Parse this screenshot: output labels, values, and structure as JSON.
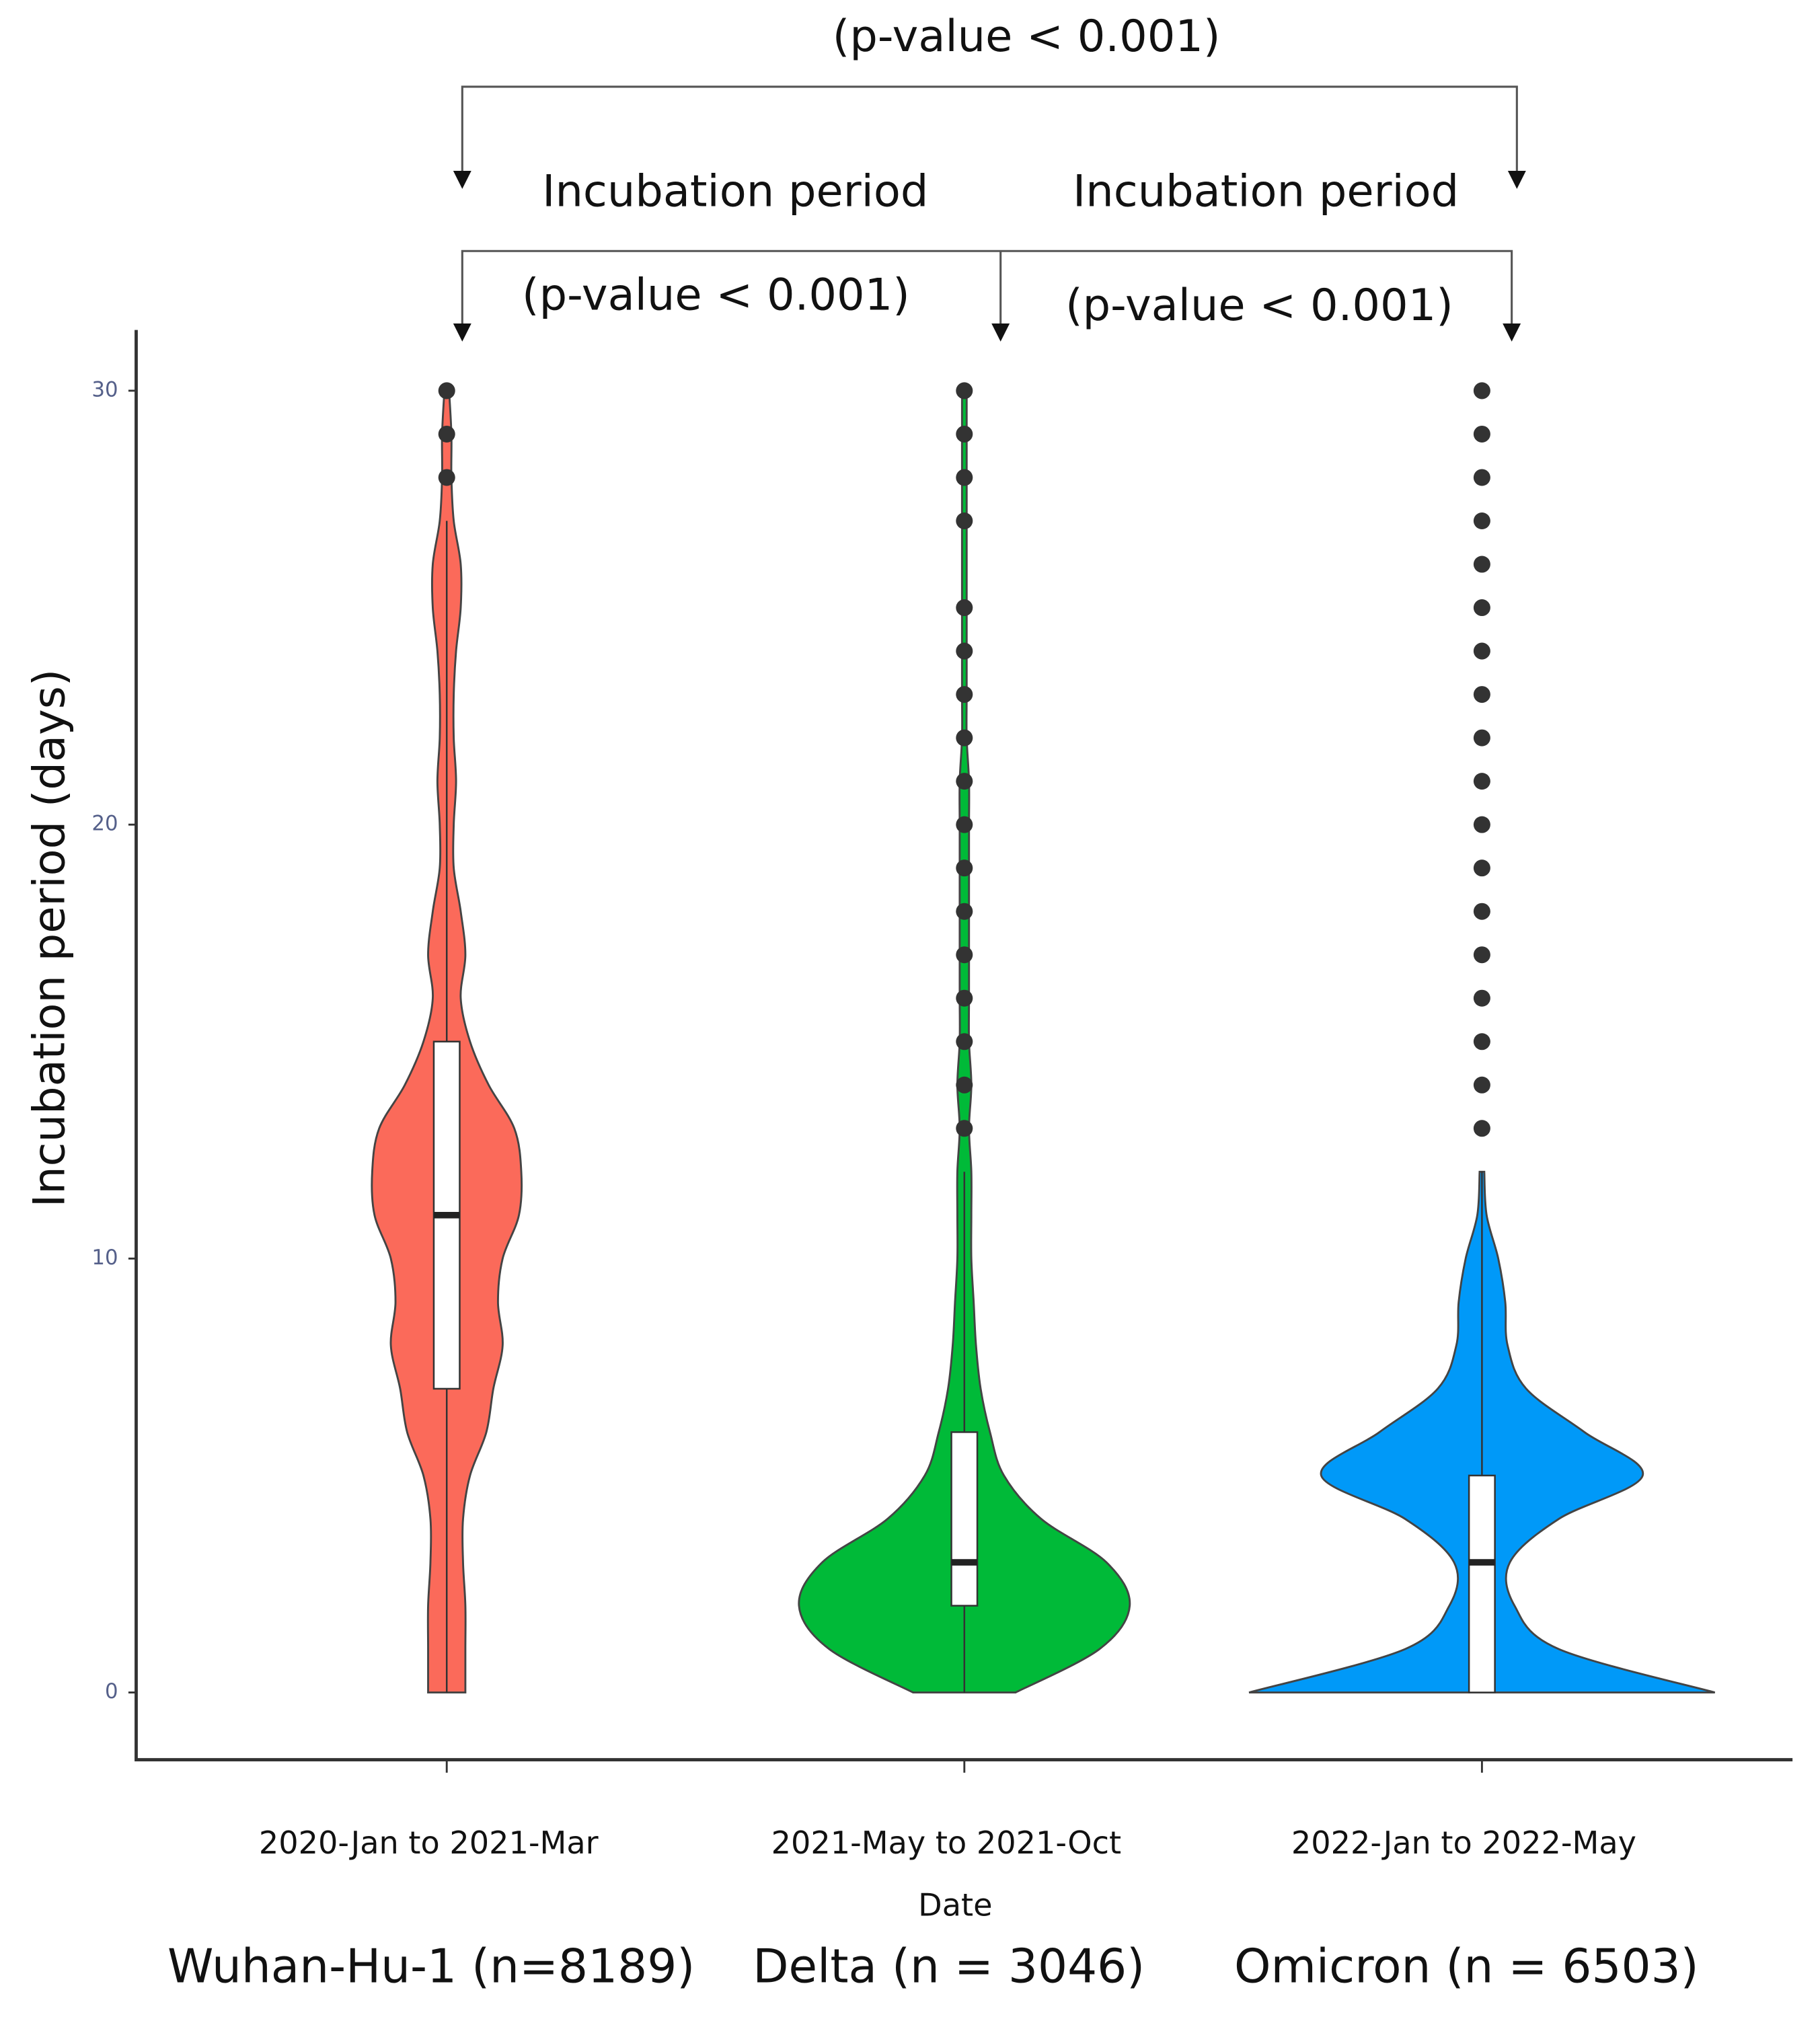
{
  "chart_data": {
    "type": "violin",
    "y_label": "Incubation period (days)",
    "x_label": "Date",
    "categories": [
      "2020-Jan to 2021-Mar",
      "2021-May to 2021-Oct",
      "2022-Jan to 2022-May"
    ],
    "ylim": [
      -1.55,
      31.4
    ],
    "yticks": [
      0,
      10,
      20,
      30
    ],
    "annotations": {
      "top_p": "(p-value < 0.001)",
      "left_label": "Incubation period",
      "left_p": "(p-value < 0.001)",
      "right_label": "Incubation period",
      "right_p": "(p-value < 0.001)"
    },
    "series": [
      {
        "name": "Wuhan-Hu-1 (n=8189)",
        "color": "#fb6a5a",
        "box": {
          "whisker_low": 0,
          "q1": 7,
          "median": 11,
          "q3": 15,
          "whisker_high": 27
        },
        "outliers": [
          28,
          29,
          30
        ],
        "density_y": [
          0,
          1,
          2,
          3,
          4,
          5,
          6,
          7,
          8,
          9,
          10,
          11,
          12,
          13,
          14,
          15,
          16,
          17,
          18,
          19,
          20,
          21,
          22,
          23,
          24,
          25,
          26,
          27,
          28,
          29,
          30
        ],
        "density": [
          0.08,
          0.08,
          0.08,
          0.07,
          0.07,
          0.1,
          0.17,
          0.2,
          0.24,
          0.22,
          0.24,
          0.31,
          0.32,
          0.29,
          0.18,
          0.1,
          0.06,
          0.08,
          0.06,
          0.03,
          0.03,
          0.04,
          0.03,
          0.03,
          0.04,
          0.06,
          0.06,
          0.03,
          0.02,
          0.02,
          0.01
        ]
      },
      {
        "name": "Delta (n = 3046)",
        "color": "#00ba38",
        "box": {
          "whisker_low": 0,
          "q1": 2,
          "median": 3,
          "q3": 6,
          "whisker_high": 12
        },
        "outliers": [
          13,
          14,
          15,
          16,
          17,
          18,
          19,
          20,
          21,
          22,
          23,
          24,
          25,
          27,
          28,
          29,
          30
        ],
        "density_y": [
          0,
          1,
          2,
          3,
          4,
          5,
          6,
          7,
          8,
          9,
          10,
          11,
          12,
          13,
          14,
          15,
          16,
          17,
          18,
          19,
          20,
          21,
          22,
          23,
          24,
          25,
          26,
          27,
          28,
          29,
          30
        ],
        "density": [
          0.22,
          0.58,
          0.71,
          0.61,
          0.33,
          0.17,
          0.11,
          0.07,
          0.05,
          0.04,
          0.03,
          0.03,
          0.03,
          0.02,
          0.03,
          0.02,
          0.02,
          0.02,
          0.02,
          0.02,
          0.02,
          0.02,
          0.01,
          0.01,
          0.01,
          0.01,
          0.01,
          0.01,
          0.01,
          0.01,
          0.01
        ]
      },
      {
        "name": "Omicron (n = 6503)",
        "color": "#0099f8",
        "box": {
          "whisker_low": 0,
          "q1": 0,
          "median": 3,
          "q3": 5,
          "whisker_high": 12
        },
        "outliers": [
          13,
          14,
          15,
          16,
          17,
          18,
          19,
          20,
          21,
          22,
          23,
          24,
          25,
          26,
          27,
          28,
          29,
          30
        ],
        "density_y": [
          0,
          1,
          2,
          3,
          4,
          5,
          6,
          7,
          8,
          9,
          10,
          11,
          12
        ],
        "density": [
          1.0,
          0.33,
          0.14,
          0.12,
          0.33,
          0.69,
          0.44,
          0.19,
          0.11,
          0.1,
          0.07,
          0.02,
          0.01
        ]
      }
    ]
  }
}
